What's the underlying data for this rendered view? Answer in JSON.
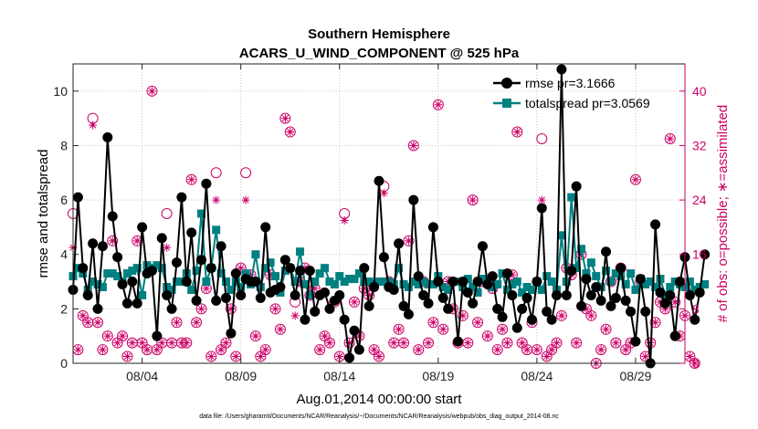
{
  "chart_data": {
    "type": "line",
    "title": "Southern Hemisphere",
    "subtitle": "ACARS_U_WIND_COMPONENT @ 525 hPa",
    "xlabel": "Aug.01,2014 00:00:00 start",
    "ylabel": "rmse and totalspread",
    "y2label": "# of obs: o=possible; ∗=assimilated",
    "footnote": "data file: /Users/gharamti/Documents/NCAR/Reanalysis/~/Documents/NCAR/Reanalysis/webpub/obs_diag_output_2014-08.nc",
    "xlim": [
      0,
      124
    ],
    "ylim": [
      0,
      11
    ],
    "y2lim": [
      0,
      44
    ],
    "x_ticks": [
      14,
      34,
      54,
      74,
      94,
      114
    ],
    "x_tick_labels": [
      "08/04",
      "08/09",
      "08/14",
      "08/19",
      "08/24",
      "08/29"
    ],
    "y_ticks": [
      0,
      2,
      4,
      6,
      8,
      10
    ],
    "y2_ticks": [
      0,
      8,
      16,
      24,
      32,
      40
    ],
    "grid": true,
    "legend_position": "top-right",
    "series": [
      {
        "name": "rmse pr=3.1666",
        "axis": "left",
        "color": "#000000",
        "marker": "circle",
        "values": [
          2.7,
          6.1,
          3.5,
          2.5,
          4.4,
          2.0,
          4.3,
          8.3,
          5.4,
          3.9,
          2.9,
          2.2,
          3.0,
          2.2,
          5.0,
          3.3,
          3.4,
          1.0,
          4.6,
          2.5,
          2.0,
          3.7,
          6.1,
          3.0,
          4.8,
          2.3,
          3.8,
          6.6,
          3.5,
          2.3,
          4.3,
          2.4,
          1.1,
          3.3,
          2.5,
          3.1,
          3.0,
          3.0,
          2.4,
          5.0,
          2.6,
          2.7,
          2.8,
          3.8,
          3.5,
          2.5,
          3.4,
          1.6,
          3.4,
          1.9,
          2.5,
          2.6,
          2.0,
          2.3,
          2.5,
          1.6,
          0.2,
          1.2,
          0.5,
          3.5,
          2.1,
          2.8,
          6.7,
          3.9,
          2.8,
          2.7,
          4.4,
          2.1,
          1.8,
          6.0,
          3.2,
          2.5,
          2.2,
          5.0,
          3.0,
          2.4,
          2.0,
          3.0,
          0.8,
          3.0,
          2.6,
          2.2,
          3.0,
          4.3,
          2.9,
          3.2,
          2.0,
          1.7,
          3.3,
          2.5,
          1.3,
          2.0,
          2.4,
          1.6,
          3.0,
          5.7,
          1.9,
          1.6,
          2.5,
          10.8,
          2.5,
          3.4,
          6.5,
          2.1,
          3.1,
          2.5,
          2.8,
          2.3,
          4.1,
          2.1,
          2.4,
          3.5,
          2.3,
          1.9,
          0.8,
          3.1,
          1.9,
          0.0,
          5.1,
          2.6,
          2.2,
          2.5,
          1.0,
          3.0,
          3.9,
          2.5,
          1.6,
          2.6,
          4.0
        ],
        "x_start": 0
      },
      {
        "name": "totalspread pr=3.0569",
        "axis": "left",
        "color": "#008080",
        "marker": "square",
        "values": [
          3.2,
          3.5,
          3.3,
          2.7,
          3.0,
          2.9,
          2.8,
          3.3,
          3.3,
          3.2,
          3.0,
          3.3,
          3.4,
          3.5,
          2.5,
          3.6,
          3.5,
          3.6,
          3.5,
          2.8,
          2.7,
          3.0,
          3.0,
          3.3,
          2.7,
          3.4,
          5.5,
          3.0,
          3.5,
          4.9,
          3.3,
          3.0,
          2.7,
          3.0,
          2.8,
          3.3,
          2.9,
          4.0,
          2.8,
          3.5,
          3.7,
          3.2,
          2.6,
          3.4,
          3.5,
          3.0,
          4.1,
          2.9,
          2.5,
          3.0,
          3.3,
          3.5,
          3.0,
          2.9,
          3.2,
          3.0,
          3.1,
          3.1,
          3.3,
          3.0,
          3.0,
          2.9,
          3.0,
          3.0,
          3.0,
          2.9,
          3.5,
          2.9,
          2.8,
          3.0,
          2.9,
          3.0,
          2.9,
          2.9,
          3.2,
          2.8,
          2.7,
          3.0,
          3.0,
          2.8,
          3.1,
          2.8,
          2.6,
          3.1,
          3.0,
          2.8,
          2.9,
          3.3,
          2.7,
          2.9,
          3.0,
          2.6,
          2.8,
          2.7,
          3.0,
          2.7,
          3.2,
          3.0,
          2.7,
          4.7,
          3.0,
          6.1,
          3.5,
          4.2,
          3.3,
          3.7,
          3.2,
          2.8,
          3.4,
          3.0,
          3.3,
          3.2,
          2.9,
          3.3,
          2.7,
          3.1,
          2.9,
          3.0,
          2.8,
          3.1,
          2.5,
          2.8,
          3.0,
          2.9,
          2.8,
          3.0,
          2.7,
          2.8,
          2.9
        ],
        "x_start": 0
      },
      {
        "name": "possible obs",
        "axis": "right",
        "color": "#cc0066",
        "marker": "open-circle",
        "values": [
          22,
          2,
          7,
          6,
          36,
          6,
          2,
          4,
          18,
          3,
          4,
          1,
          3,
          18,
          3,
          2,
          40,
          2,
          3,
          22,
          3,
          6,
          3,
          3,
          27,
          6,
          8,
          11,
          1,
          28,
          2,
          3,
          8,
          1,
          14,
          28,
          13,
          4,
          1,
          2,
          13,
          8,
          5,
          36,
          34,
          9,
          12,
          14,
          10,
          11,
          2,
          4,
          3,
          9,
          1,
          22,
          3,
          9,
          4,
          11,
          10,
          2,
          1,
          26,
          12,
          3,
          5,
          3,
          18,
          32,
          2,
          12,
          3,
          6,
          38,
          5,
          12,
          8,
          3,
          7,
          3,
          24,
          6,
          12,
          4,
          11,
          2,
          5,
          3,
          13,
          34,
          3,
          2,
          6,
          2,
          33,
          1,
          2,
          3,
          7,
          14,
          13,
          3,
          16,
          8,
          7,
          0,
          2,
          5,
          12,
          3,
          14,
          2,
          3,
          27,
          12,
          1,
          3,
          6,
          9,
          8,
          33,
          9,
          4,
          7,
          1,
          0
        ],
        "x_start": 0
      },
      {
        "name": "assimilated obs",
        "axis": "right",
        "color": "#cc0066",
        "marker": "asterisk",
        "values": [
          17,
          2,
          7,
          6,
          35,
          6,
          2,
          4,
          18,
          3,
          4,
          1,
          3,
          18,
          3,
          2,
          40,
          2,
          3,
          17,
          3,
          6,
          3,
          3,
          27,
          6,
          8,
          11,
          1,
          24,
          2,
          3,
          8,
          1,
          14,
          24,
          13,
          4,
          1,
          2,
          13,
          8,
          5,
          36,
          34,
          7,
          12,
          14,
          10,
          11,
          2,
          4,
          3,
          9,
          1,
          21,
          3,
          9,
          4,
          11,
          10,
          2,
          1,
          25,
          12,
          3,
          5,
          3,
          18,
          32,
          2,
          12,
          3,
          6,
          38,
          5,
          12,
          8,
          3,
          7,
          3,
          24,
          6,
          12,
          4,
          11,
          2,
          5,
          3,
          13,
          34,
          3,
          2,
          6,
          2,
          24,
          1,
          2,
          3,
          7,
          14,
          13,
          3,
          16,
          8,
          7,
          0,
          2,
          5,
          12,
          3,
          14,
          2,
          3,
          27,
          12,
          1,
          3,
          6,
          9,
          8,
          33,
          9,
          4,
          7,
          1,
          0
        ],
        "x_start": 0
      }
    ]
  }
}
